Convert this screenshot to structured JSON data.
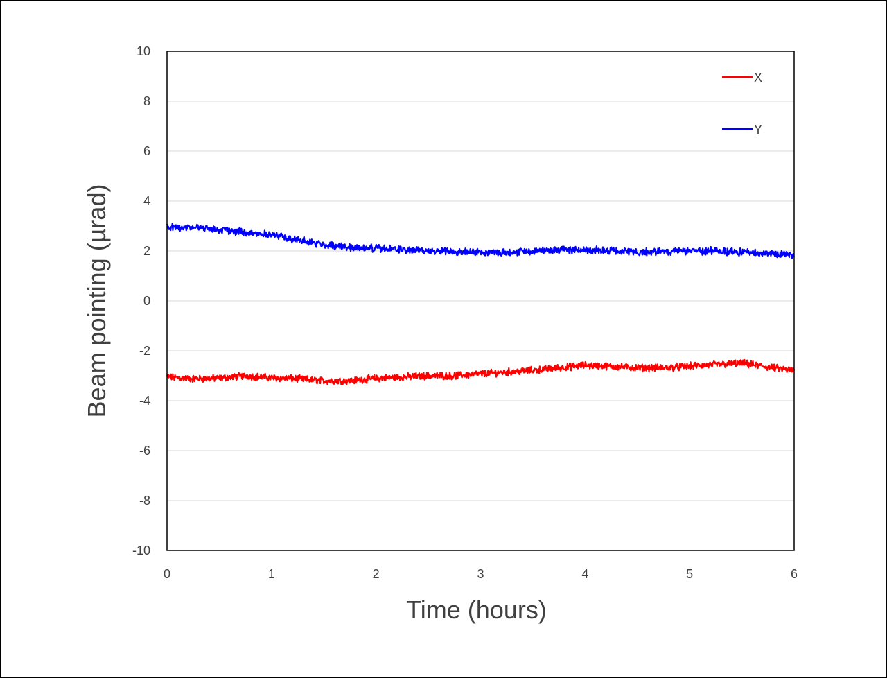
{
  "chart_data": {
    "type": "line",
    "title": "",
    "xlabel": "Time (hours)",
    "ylabel": "Beam pointing  (µrad)",
    "xlim": [
      0,
      6
    ],
    "ylim": [
      -10,
      10
    ],
    "xticks": [
      0,
      1,
      2,
      3,
      4,
      5,
      6
    ],
    "yticks": [
      -10,
      -8,
      -6,
      -4,
      -2,
      0,
      2,
      4,
      6,
      8,
      10
    ],
    "grid": "horizontal",
    "legend_position": "top-right",
    "series": [
      {
        "name": "X",
        "color": "#ff0000",
        "x": [
          0,
          0.25,
          0.5,
          0.75,
          1.0,
          1.25,
          1.5,
          1.75,
          2.0,
          2.25,
          2.5,
          2.75,
          3.0,
          3.25,
          3.5,
          3.75,
          4.0,
          4.25,
          4.5,
          4.75,
          5.0,
          5.25,
          5.5,
          5.75,
          6.0
        ],
        "y": [
          -3.05,
          -3.12,
          -3.1,
          -3.0,
          -3.08,
          -3.12,
          -3.2,
          -3.2,
          -3.1,
          -3.05,
          -3.0,
          -3.0,
          -2.92,
          -2.85,
          -2.78,
          -2.68,
          -2.58,
          -2.62,
          -2.68,
          -2.68,
          -2.62,
          -2.55,
          -2.5,
          -2.65,
          -2.8
        ]
      },
      {
        "name": "Y",
        "color": "#0000ff",
        "x": [
          0,
          0.25,
          0.5,
          0.75,
          1.0,
          1.25,
          1.5,
          1.75,
          2.0,
          2.25,
          2.5,
          2.75,
          3.0,
          3.25,
          3.5,
          3.75,
          4.0,
          4.25,
          4.5,
          4.75,
          5.0,
          5.25,
          5.5,
          5.75,
          6.0
        ],
        "y": [
          2.95,
          2.95,
          2.85,
          2.75,
          2.65,
          2.45,
          2.25,
          2.15,
          2.1,
          2.05,
          2.0,
          2.0,
          1.95,
          1.95,
          2.0,
          2.05,
          2.05,
          2.0,
          1.95,
          1.98,
          2.0,
          2.0,
          1.95,
          1.9,
          1.85
        ]
      }
    ]
  }
}
